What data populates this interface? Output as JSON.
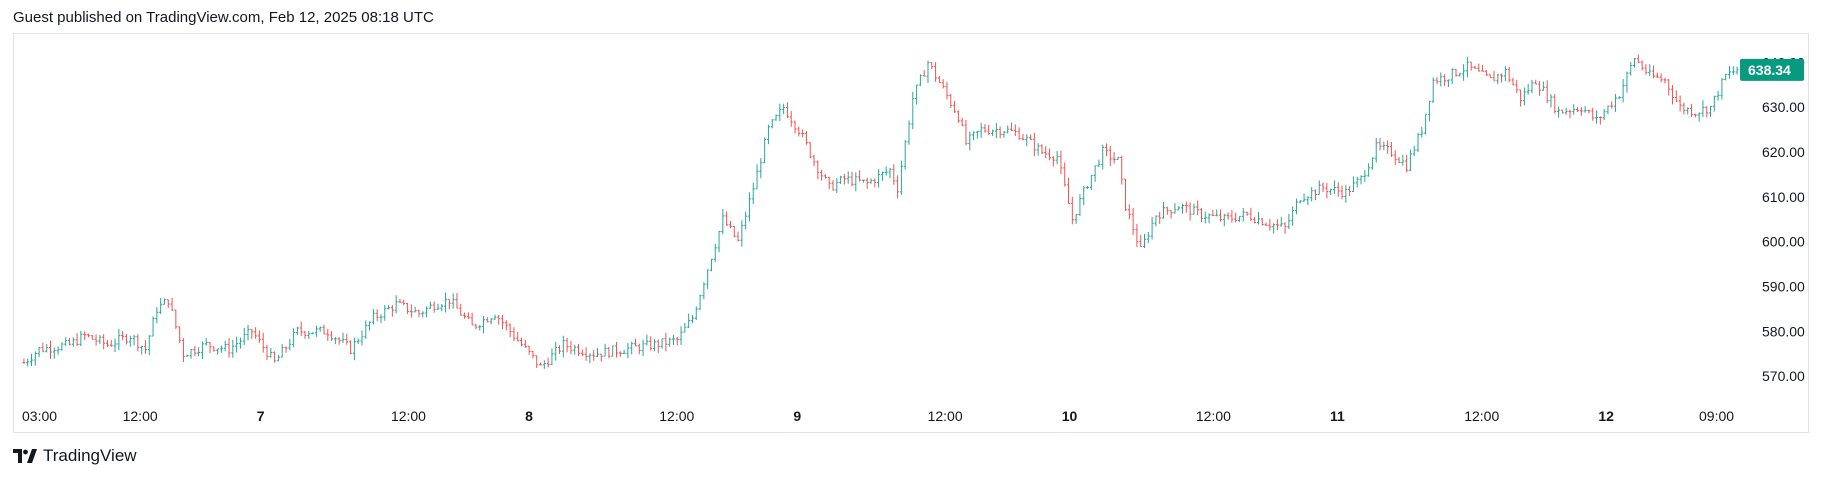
{
  "header": {
    "text": "Guest published on TradingView.com, Feb 12, 2025 08:18 UTC"
  },
  "footer": {
    "brand": "TradingView"
  },
  "colors": {
    "up": "#26a69a",
    "down": "#ef5350",
    "badge": "#089981",
    "axis_text": "#131722",
    "border": "#e0e3eb"
  },
  "chart_data": {
    "type": "ohlc",
    "title": "",
    "ylim": [
      566,
      645
    ],
    "y_ticks": [
      "570.00",
      "580.00",
      "590.00",
      "600.00",
      "610.00",
      "620.00",
      "630.00",
      "640.00"
    ],
    "x_ticks": [
      {
        "label": "03:00",
        "bold": false,
        "pos": 0.0
      },
      {
        "label": "12:00",
        "bold": false,
        "pos": 0.06
      },
      {
        "label": "7",
        "bold": true,
        "pos": 0.14
      },
      {
        "label": "12:00",
        "bold": false,
        "pos": 0.22
      },
      {
        "label": "8",
        "bold": true,
        "pos": 0.3
      },
      {
        "label": "12:00",
        "bold": false,
        "pos": 0.38
      },
      {
        "label": "9",
        "bold": true,
        "pos": 0.46
      },
      {
        "label": "12:00",
        "bold": false,
        "pos": 0.54
      },
      {
        "label": "10",
        "bold": true,
        "pos": 0.62
      },
      {
        "label": "12:00",
        "bold": false,
        "pos": 0.7
      },
      {
        "label": "11",
        "bold": true,
        "pos": 0.78
      },
      {
        "label": "12:00",
        "bold": false,
        "pos": 0.86
      },
      {
        "label": "12",
        "bold": true,
        "pos": 0.94
      },
      {
        "label": "09:00",
        "bold": false,
        "pos": 1.0
      }
    ],
    "last_price": "638.34",
    "anchors": [
      [
        0,
        573
      ],
      [
        4,
        576
      ],
      [
        12,
        577
      ],
      [
        16,
        579
      ],
      [
        22,
        577
      ],
      [
        28,
        579
      ],
      [
        32,
        576
      ],
      [
        35,
        585
      ],
      [
        38,
        587
      ],
      [
        42,
        575
      ],
      [
        48,
        577
      ],
      [
        54,
        576
      ],
      [
        60,
        580
      ],
      [
        66,
        573
      ],
      [
        72,
        580
      ],
      [
        80,
        580
      ],
      [
        86,
        576
      ],
      [
        92,
        583
      ],
      [
        98,
        586
      ],
      [
        104,
        584
      ],
      [
        108,
        586
      ],
      [
        112,
        587
      ],
      [
        118,
        581
      ],
      [
        124,
        584
      ],
      [
        130,
        578
      ],
      [
        136,
        572
      ],
      [
        142,
        577
      ],
      [
        150,
        575
      ],
      [
        158,
        576
      ],
      [
        166,
        577
      ],
      [
        172,
        578
      ],
      [
        176,
        583
      ],
      [
        180,
        594
      ],
      [
        184,
        605
      ],
      [
        188,
        600
      ],
      [
        192,
        612
      ],
      [
        196,
        625
      ],
      [
        200,
        630
      ],
      [
        204,
        625
      ],
      [
        208,
        618
      ],
      [
        212,
        612
      ],
      [
        216,
        614
      ],
      [
        222,
        613
      ],
      [
        228,
        616
      ],
      [
        230,
        612
      ],
      [
        234,
        632
      ],
      [
        238,
        640
      ],
      [
        242,
        634
      ],
      [
        246,
        628
      ],
      [
        248,
        622
      ],
      [
        252,
        625
      ],
      [
        258,
        625
      ],
      [
        262,
        624
      ],
      [
        268,
        620
      ],
      [
        272,
        619
      ],
      [
        276,
        605
      ],
      [
        280,
        613
      ],
      [
        284,
        620
      ],
      [
        288,
        618
      ],
      [
        290,
        608
      ],
      [
        294,
        598
      ],
      [
        298,
        606
      ],
      [
        304,
        608
      ],
      [
        310,
        606
      ],
      [
        316,
        605
      ],
      [
        322,
        606
      ],
      [
        328,
        604
      ],
      [
        332,
        603
      ],
      [
        336,
        610
      ],
      [
        342,
        612
      ],
      [
        348,
        611
      ],
      [
        352,
        614
      ],
      [
        356,
        621
      ],
      [
        360,
        620
      ],
      [
        364,
        617
      ],
      [
        368,
        625
      ],
      [
        371,
        636
      ],
      [
        375,
        637
      ],
      [
        380,
        639
      ],
      [
        386,
        636
      ],
      [
        390,
        638
      ],
      [
        394,
        632
      ],
      [
        398,
        636
      ],
      [
        404,
        629
      ],
      [
        410,
        630
      ],
      [
        414,
        627
      ],
      [
        420,
        633
      ],
      [
        424,
        641
      ],
      [
        428,
        637
      ],
      [
        432,
        636
      ],
      [
        436,
        630
      ],
      [
        440,
        629
      ],
      [
        444,
        630
      ],
      [
        448,
        637
      ],
      [
        451,
        638.34
      ]
    ]
  }
}
